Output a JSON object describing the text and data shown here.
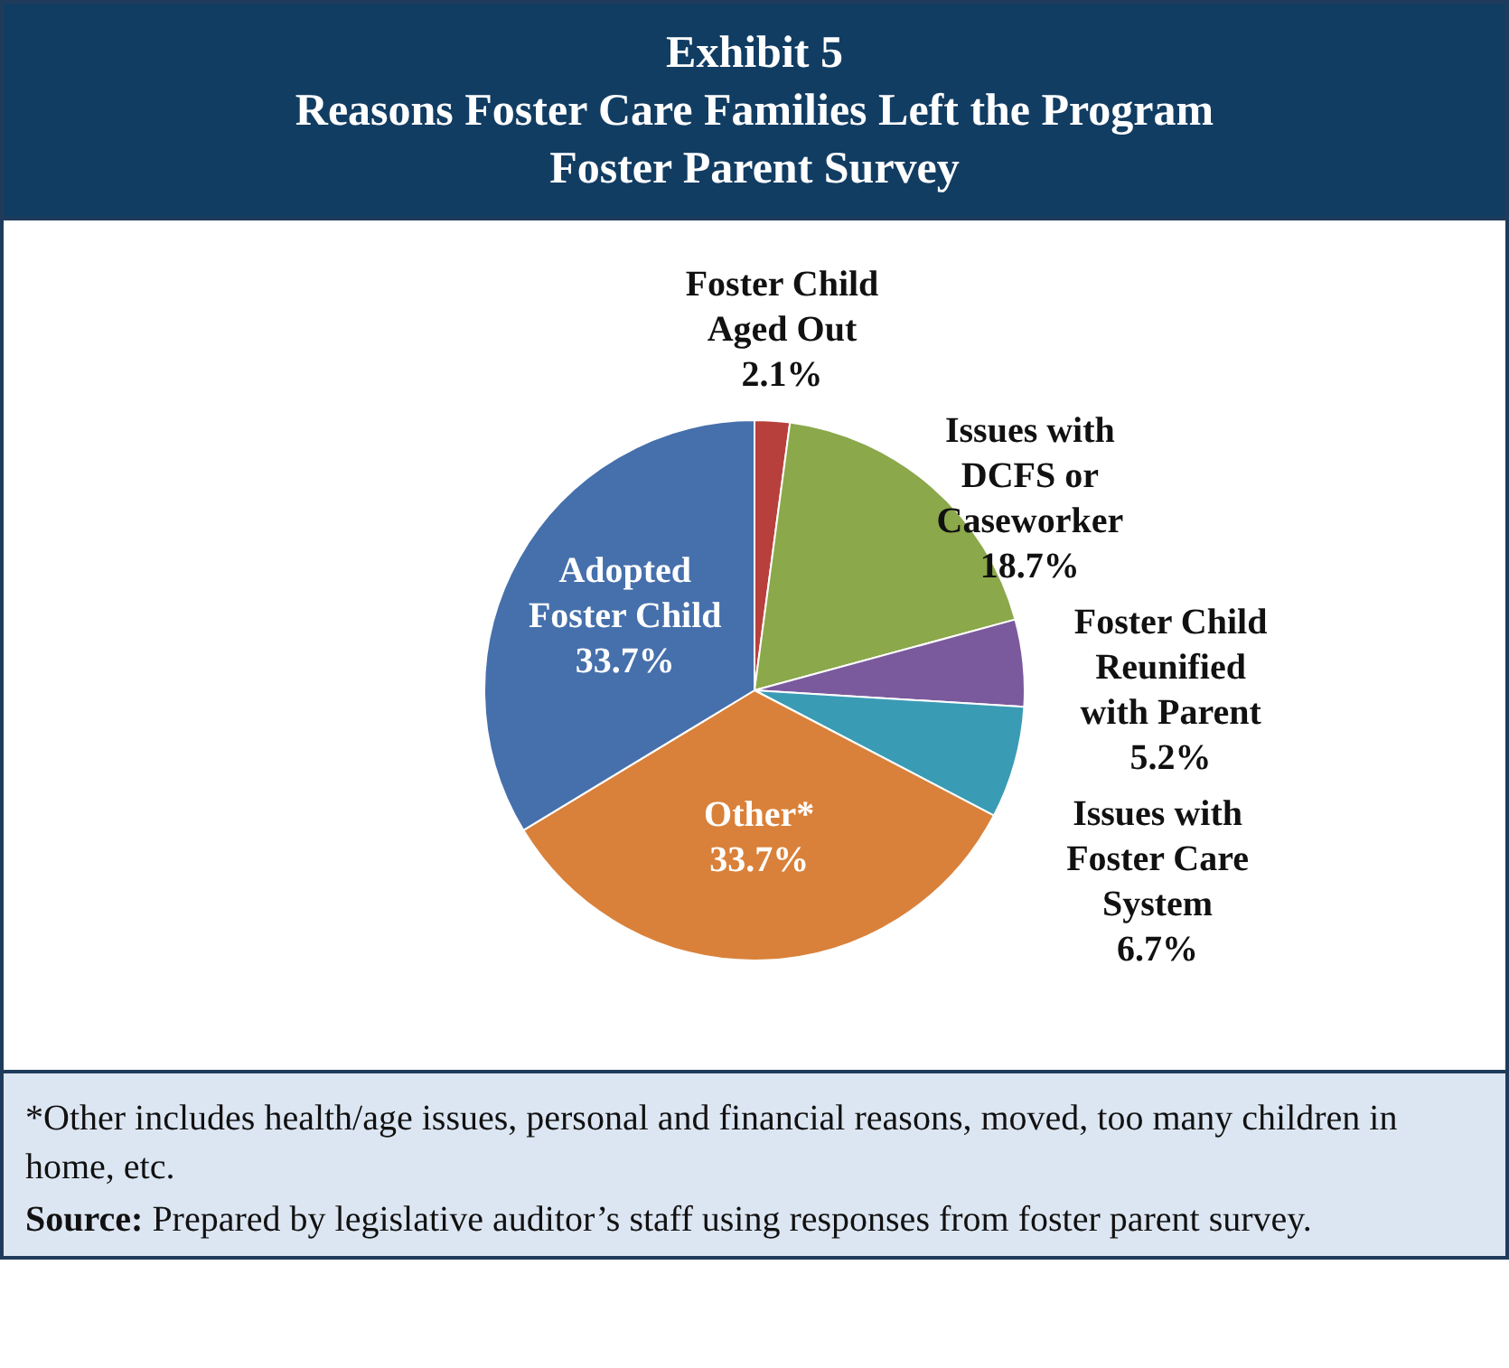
{
  "chart_data": {
    "type": "pie",
    "title": "Exhibit 5",
    "subtitle": "Reasons Foster Care Families Left the Program\nFoster Parent Survey",
    "categories": [
      "Foster Child Aged Out",
      "Issues with DCFS or Caseworker",
      "Foster Child Reunified with Parent",
      "Issues with Foster Care System",
      "Other*",
      "Adopted Foster Child"
    ],
    "values": [
      2.1,
      18.7,
      5.2,
      6.7,
      33.7,
      33.7
    ],
    "colors": [
      "#b8403c",
      "#8ba84a",
      "#7a5a9c",
      "#3a9bb4",
      "#d9813a",
      "#4670ac"
    ],
    "value_labels": [
      "2.1%",
      "18.7%",
      "5.2%",
      "6.7%",
      "33.7%",
      "33.7%"
    ],
    "legend": false,
    "annotations": [
      "*Other includes health/age issues, personal and financial reasons, moved, too many children in home, etc.",
      "Source: Prepared by legislative auditor’s staff using responses from foster parent survey."
    ]
  }
}
